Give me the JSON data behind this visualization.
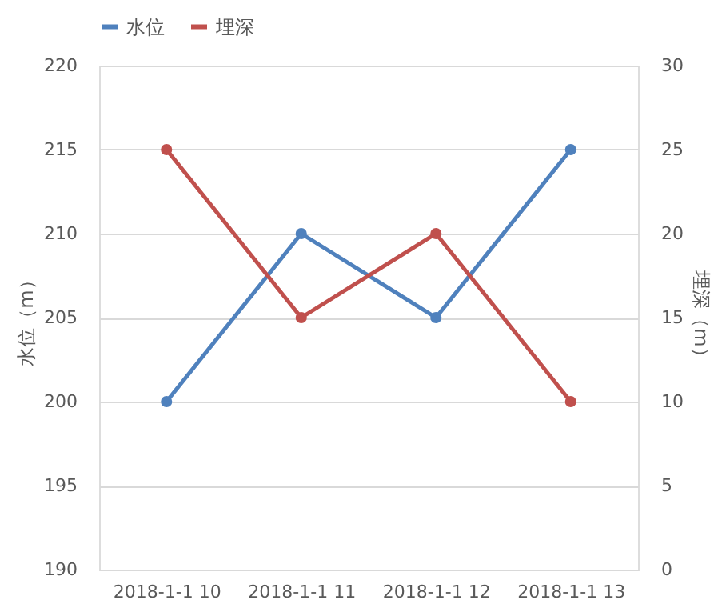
{
  "chart_data": {
    "type": "line",
    "categories": [
      "2018-1-1 10",
      "2018-1-1 11",
      "2018-1-1 12",
      "2018-1-1 13"
    ],
    "series": [
      {
        "name": "水位",
        "color": "#4f81bd",
        "values": [
          200,
          210,
          205,
          215
        ]
      },
      {
        "name": "埋深",
        "color": "#c0504d",
        "values": [
          25,
          15,
          20,
          10
        ],
        "axis": "y2"
      }
    ],
    "ylabel": "水位（m）",
    "y2label": "埋深（m）",
    "ylim": [
      190,
      220
    ],
    "yticks": [
      190,
      195,
      200,
      205,
      210,
      215,
      220
    ],
    "y2lim": [
      0,
      30
    ],
    "y2ticks": [
      0,
      5,
      10,
      15,
      20,
      25,
      30
    ],
    "grid": "y",
    "legend": "top",
    "marker": "circle",
    "line_style": "solid"
  }
}
